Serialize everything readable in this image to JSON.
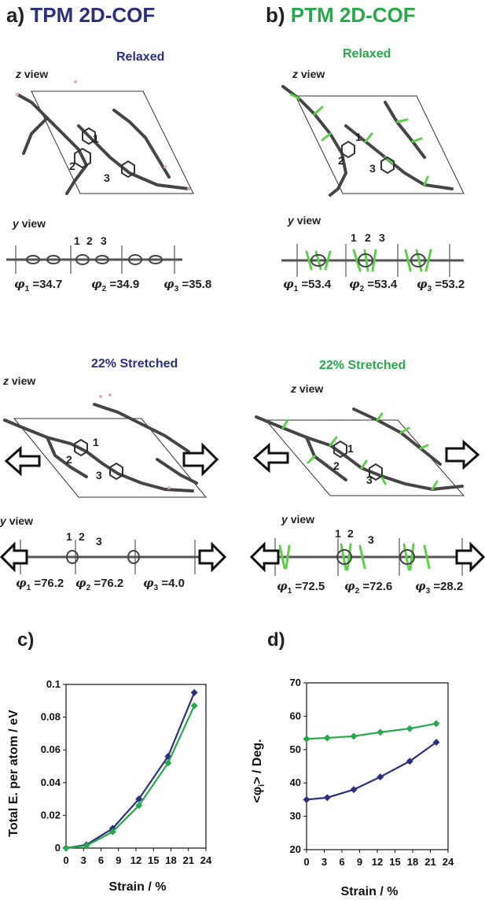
{
  "colors": {
    "tpm": "#2b2f7c",
    "ptm": "#27a84a",
    "molecule": "#444444",
    "fluorine": "#5dcf49",
    "hydrogen": "#e8a7b5"
  },
  "panel_a": {
    "letter": "a)",
    "name": "TPM 2D-COF",
    "relaxed": {
      "title": "Relaxed",
      "z_view": "z",
      "y_view": "y",
      "view_word": "view",
      "ring_labels": [
        "1",
        "2",
        "3"
      ],
      "angles": [
        {
          "sym": "φ",
          "sub": "1",
          "val": "=34.7"
        },
        {
          "sym": "φ",
          "sub": "2",
          "val": "=34.9"
        },
        {
          "sym": "φ",
          "sub": "3",
          "val": "=35.8"
        }
      ]
    },
    "stretched": {
      "title": "22% Stretched",
      "z_view": "z",
      "y_view": "y",
      "view_word": "view",
      "ring_labels": [
        "1",
        "2",
        "3"
      ],
      "angles": [
        {
          "sym": "φ",
          "sub": "1",
          "val": "=76.2"
        },
        {
          "sym": "φ",
          "sub": "2",
          "val": "=76.2"
        },
        {
          "sym": "φ",
          "sub": "3",
          "val": "=4.0"
        }
      ]
    }
  },
  "panel_b": {
    "letter": "b)",
    "name": "PTM 2D-COF",
    "relaxed": {
      "title": "Relaxed",
      "z_view": "z",
      "y_view": "y",
      "view_word": "view",
      "ring_labels": [
        "1",
        "2",
        "3"
      ],
      "angles": [
        {
          "sym": "φ",
          "sub": "1",
          "val": "=53.4"
        },
        {
          "sym": "φ",
          "sub": "2",
          "val": "=53.4"
        },
        {
          "sym": "φ",
          "sub": "3",
          "val": "=53.2"
        }
      ]
    },
    "stretched": {
      "title": "22% Stretched",
      "z_view": "z",
      "y_view": "y",
      "view_word": "view",
      "ring_labels": [
        "1",
        "2",
        "3"
      ],
      "angles": [
        {
          "sym": "φ",
          "sub": "1",
          "val": "=72.5"
        },
        {
          "sym": "φ",
          "sub": "2",
          "val": "=72.6"
        },
        {
          "sym": "φ",
          "sub": "3",
          "val": "=28.2"
        }
      ]
    }
  },
  "chart_data": [
    {
      "type": "line",
      "panel_letter": "c)",
      "xlabel": "Strain / %",
      "ylabel": "Total E. per atom / eV",
      "x_ticks": [
        "0",
        "3",
        "6",
        "9",
        "12",
        "15",
        "18",
        "21",
        "24"
      ],
      "y_ticks": [
        "0",
        "0.02",
        "0.04",
        "0.06",
        "0.08",
        "0.1"
      ],
      "xlim": [
        0,
        24
      ],
      "ylim": [
        0,
        0.1
      ],
      "grid": false,
      "x": [
        0,
        3.5,
        8,
        12.5,
        17.5,
        22
      ],
      "series": [
        {
          "color": "#2b2f7c",
          "values": [
            0,
            0.002,
            0.012,
            0.03,
            0.056,
            0.095
          ]
        },
        {
          "color": "#27a84a",
          "values": [
            0,
            0.0015,
            0.01,
            0.026,
            0.052,
            0.087
          ]
        }
      ]
    },
    {
      "type": "line",
      "panel_letter": "d)",
      "xlabel": "Strain / %",
      "ylabel_pre": "<φ",
      "ylabel_sub": "i",
      "ylabel_post": "> / Deg.",
      "x_ticks": [
        "0",
        "3",
        "6",
        "9",
        "12",
        "15",
        "18",
        "21",
        "24"
      ],
      "y_ticks": [
        "20",
        "30",
        "40",
        "50",
        "60",
        "70"
      ],
      "xlim": [
        0,
        24
      ],
      "ylim": [
        20,
        70
      ],
      "grid": false,
      "x": [
        0,
        3.5,
        8,
        12.5,
        17.5,
        22
      ],
      "series": [
        {
          "color": "#27a84a",
          "values": [
            53.2,
            53.5,
            54.0,
            55.2,
            56.3,
            57.8
          ]
        },
        {
          "color": "#2b2f7c",
          "values": [
            35.0,
            35.6,
            38.0,
            41.8,
            46.5,
            52.2
          ]
        }
      ]
    }
  ]
}
